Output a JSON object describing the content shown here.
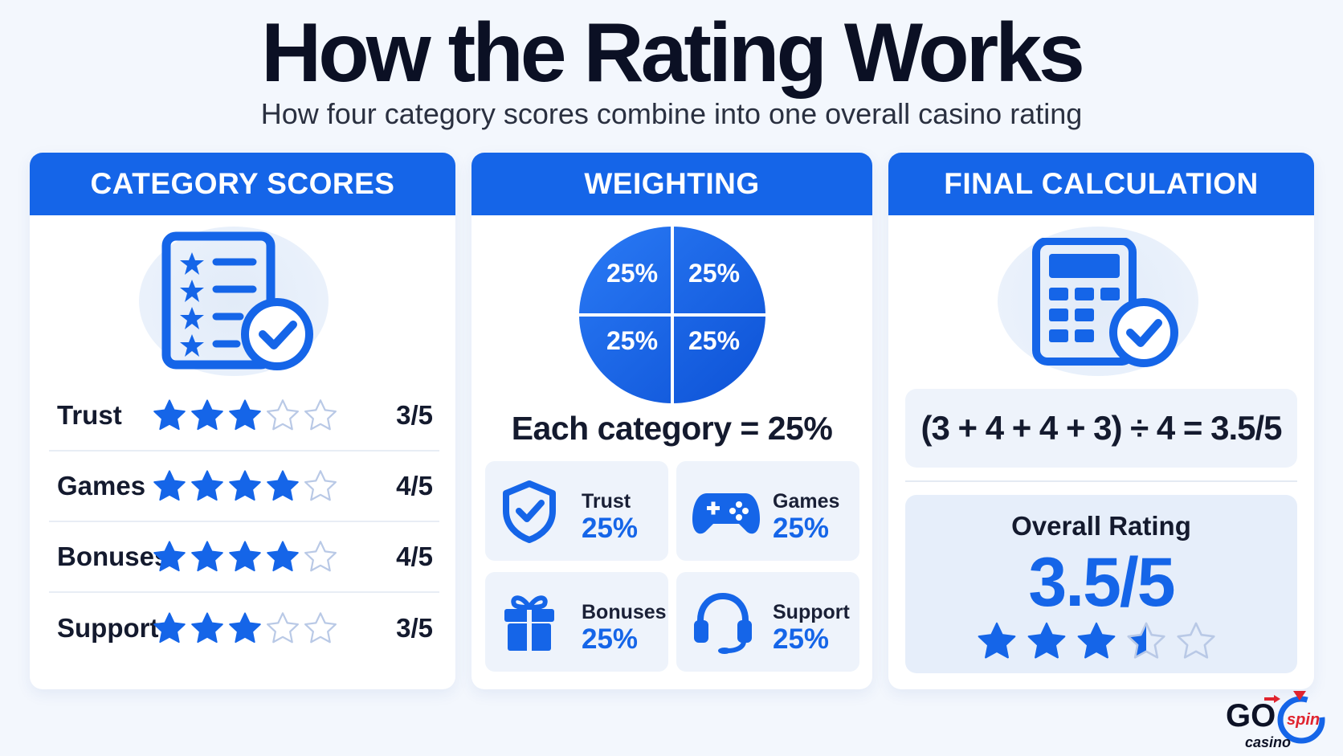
{
  "header": {
    "title": "How the Rating Works",
    "subtitle": "How four category scores combine into one overall casino rating"
  },
  "panels": {
    "category": {
      "heading": "CATEGORY SCORES",
      "icon": "rating-checklist-icon",
      "rows": [
        {
          "label": "Trust",
          "stars": 3,
          "score": "3/5"
        },
        {
          "label": "Games",
          "stars": 4,
          "score": "4/5"
        },
        {
          "label": "Bonuses",
          "stars": 4,
          "score": "4/5"
        },
        {
          "label": "Support",
          "stars": 3,
          "score": "3/5"
        }
      ]
    },
    "weighting": {
      "heading": "WEIGHTING",
      "pie": [
        "25%",
        "25%",
        "25%",
        "25%"
      ],
      "each_category": "Each category = 25%",
      "tiles": [
        {
          "name": "Trust",
          "pct": "25%",
          "icon": "shield-check-icon"
        },
        {
          "name": "Games",
          "pct": "25%",
          "icon": "gamepad-icon"
        },
        {
          "name": "Bonuses",
          "pct": "25%",
          "icon": "gift-icon"
        },
        {
          "name": "Support",
          "pct": "25%",
          "icon": "headset-icon"
        }
      ]
    },
    "final": {
      "heading": "FINAL CALCULATION",
      "icon": "calculator-check-icon",
      "formula": "(3 + 4 + 4 + 3) ÷ 4 = 3.5/5",
      "overall_label": "Overall Rating",
      "overall_value": "3.5/5",
      "overall_stars": 3.5
    }
  },
  "logo": {
    "brand_text": "GO spin casino"
  },
  "colors": {
    "accent": "#1565e8",
    "background": "#f3f7fd",
    "tile": "#eef3fb",
    "logo_red": "#e0242f"
  }
}
